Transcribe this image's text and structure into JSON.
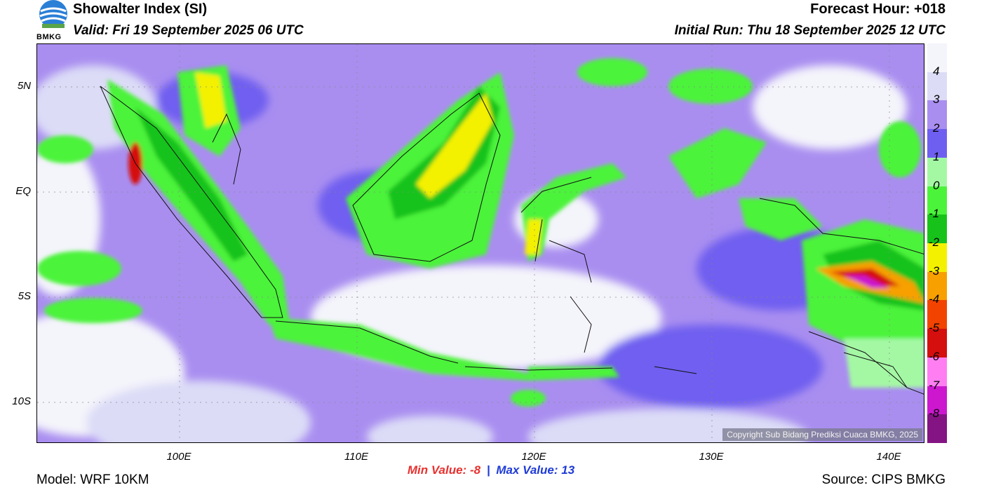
{
  "header": {
    "title": "Showalter Index (SI)",
    "valid": "Valid: Fri 19 September 2025 06 UTC",
    "forecast_hour": "Forecast Hour: +018",
    "initial_run": "Initial Run: Thu 18 September 2025 12 UTC"
  },
  "logo": {
    "text": "BMKG",
    "icon": "bmkg-logo-icon"
  },
  "map": {
    "copyright": "Copyright Sub Bidang Prediksi Cuaca BMKG, 2025",
    "lat_labels": [
      "5N",
      "EQ",
      "5S",
      "10S"
    ],
    "lon_labels": [
      "100E",
      "110E",
      "120E",
      "130E",
      "140E"
    ]
  },
  "legend": {
    "labels": [
      "4",
      "3",
      "2",
      "1",
      "0",
      "-1",
      "-2",
      "-3",
      "-4",
      "-5",
      "-6",
      "-7",
      "-8"
    ],
    "colors": [
      "#f4f4fb",
      "#dcdcf7",
      "#a98ef0",
      "#6f5ff0",
      "#a4f8a4",
      "#4cf33b",
      "#17c31a",
      "#f4f100",
      "#f7a000",
      "#f24300",
      "#d50e0e",
      "#ff7ff2",
      "#cc17cf",
      "#841383"
    ]
  },
  "stats": {
    "min_label": "Min Value:",
    "min_value": "-8",
    "separator": "|",
    "max_label": "Max Value:",
    "max_value": "13"
  },
  "footer": {
    "model": "Model: WRF 10KM",
    "source": "Source: CIPS BMKG"
  }
}
